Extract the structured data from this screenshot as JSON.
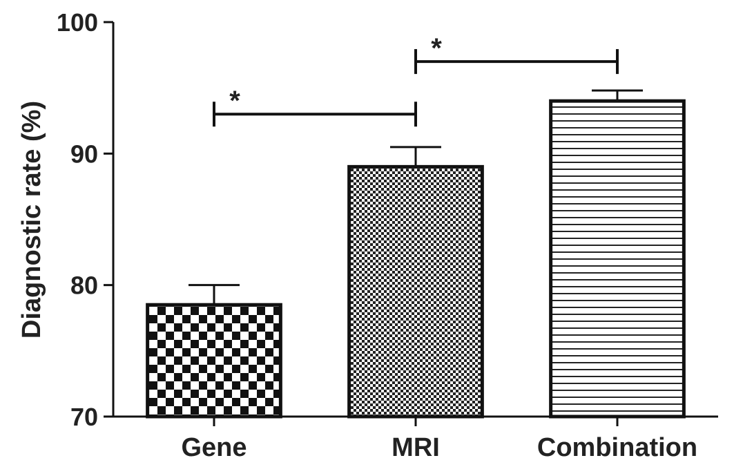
{
  "chart_data": {
    "type": "bar",
    "categories": [
      "Gene",
      "MRI",
      "Combination"
    ],
    "values": [
      78.5,
      89,
      94
    ],
    "errors": [
      1.5,
      1.5,
      0.8
    ],
    "ylabel": "Diagnostic rate (%)",
    "xlabel": "",
    "ylim": [
      70,
      100
    ],
    "yticks": [
      70,
      80,
      90,
      100
    ],
    "grid": false,
    "patterns": [
      "checker",
      "dots",
      "hlines"
    ],
    "significance": [
      {
        "from": "Gene",
        "to": "MRI",
        "level": 93,
        "label": "*"
      },
      {
        "from": "MRI",
        "to": "Combination",
        "level": 97,
        "label": "*"
      }
    ]
  }
}
